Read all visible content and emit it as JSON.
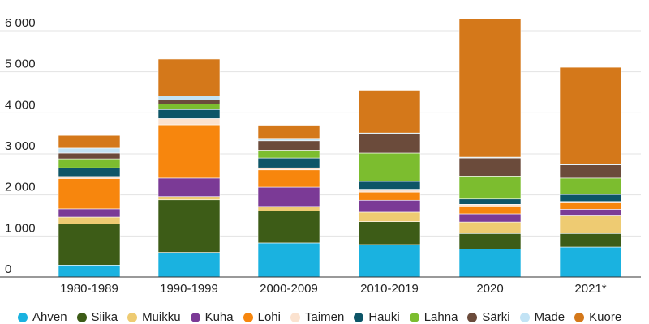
{
  "chart_data": {
    "type": "bar",
    "stacked": true,
    "categories": [
      "1980-1989",
      "1990-1999",
      "2000-2009",
      "2010-2019",
      "2020",
      "2021*"
    ],
    "ylim": [
      0,
      6000
    ],
    "yticks": [
      0,
      1000,
      2000,
      3000,
      4000,
      5000,
      6000
    ],
    "ytick_labels": [
      "0",
      "1 000",
      "2 000",
      "3 000",
      "4 000",
      "5 000",
      "6 000"
    ],
    "grid": true,
    "legend_position": "bottom",
    "series": [
      {
        "name": "Ahven",
        "color": "#1ab2e0",
        "values": [
          290,
          600,
          830,
          790,
          680,
          730
        ]
      },
      {
        "name": "Siika",
        "color": "#3d5c17",
        "values": [
          1000,
          1280,
          780,
          560,
          380,
          330
        ]
      },
      {
        "name": "Muikku",
        "color": "#eecb72",
        "values": [
          170,
          80,
          110,
          230,
          280,
          430
        ]
      },
      {
        "name": "Kuha",
        "color": "#7b3a96",
        "values": [
          200,
          450,
          470,
          290,
          200,
          160
        ]
      },
      {
        "name": "Lohi",
        "color": "#f7860d",
        "values": [
          740,
          1300,
          420,
          200,
          190,
          160
        ]
      },
      {
        "name": "Taimen",
        "color": "#fbe2cf",
        "values": [
          50,
          150,
          50,
          70,
          40,
          30
        ]
      },
      {
        "name": "Hauki",
        "color": "#0d5567",
        "values": [
          210,
          220,
          240,
          190,
          130,
          170
        ]
      },
      {
        "name": "Lahna",
        "color": "#7cbd2f",
        "values": [
          220,
          130,
          190,
          690,
          560,
          400
        ]
      },
      {
        "name": "Särki",
        "color": "#6b4b3b",
        "values": [
          140,
          100,
          230,
          460,
          440,
          320
        ]
      },
      {
        "name": "Made",
        "color": "#c2e3f5",
        "values": [
          120,
          100,
          60,
          30,
          20,
          20
        ]
      },
      {
        "name": "Kuore",
        "color": "#d4781a",
        "values": [
          310,
          900,
          320,
          1040,
          3380,
          2360
        ]
      }
    ]
  }
}
